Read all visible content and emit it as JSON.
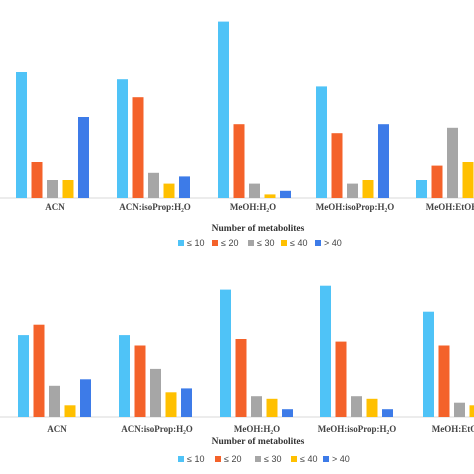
{
  "colors": {
    "le10": "#4FC3F7",
    "le20": "#F4622A",
    "le30": "#A6A6A6",
    "le40": "#FFC000",
    "gt40": "#3D7BE8",
    "axis": "#D9D9D9"
  },
  "legend": [
    "≤ 10",
    "≤ 20",
    "≤ 30",
    "≤ 40",
    "> 40"
  ],
  "chart_data": [
    {
      "type": "bar",
      "xlabel": "Number of metabolites",
      "categories": [
        "ACN",
        "ACN:isoProp:H₂O",
        "MeOH:H₂O",
        "MeOH:isoProp:H₂O",
        "MeOH:EtOH"
      ],
      "series": [
        {
          "name": "≤ 10",
          "values": [
            70,
            66,
            98,
            62,
            10
          ]
        },
        {
          "name": "≤ 20",
          "values": [
            20,
            56,
            41,
            36,
            18
          ]
        },
        {
          "name": "≤ 30",
          "values": [
            10,
            14,
            8,
            8,
            39
          ]
        },
        {
          "name": "≤ 40",
          "values": [
            10,
            8,
            2,
            10,
            20
          ]
        },
        {
          "name": "> 40",
          "values": [
            45,
            12,
            4,
            41,
            null
          ]
        }
      ],
      "ylim": [
        0,
        100
      ],
      "legend_position": "bottom"
    },
    {
      "type": "bar",
      "xlabel": "Number of metabolites",
      "categories": [
        "ACN",
        "ACN:isoProp:H₂O",
        "MeOH:H₂O",
        "MeOH:isoProp:H₂O",
        "MeOH:EtOH"
      ],
      "series": [
        {
          "name": "≤ 10",
          "values": [
            63,
            63,
            98,
            101,
            81
          ]
        },
        {
          "name": "≤ 20",
          "values": [
            71,
            55,
            60,
            58,
            55
          ]
        },
        {
          "name": "≤ 30",
          "values": [
            24,
            37,
            16,
            16,
            11
          ]
        },
        {
          "name": "≤ 40",
          "values": [
            9,
            19,
            14,
            14,
            9
          ]
        },
        {
          "name": "> 40",
          "values": [
            29,
            22,
            6,
            6,
            null
          ]
        }
      ],
      "ylim": [
        0,
        100
      ],
      "legend_position": "bottom"
    }
  ]
}
